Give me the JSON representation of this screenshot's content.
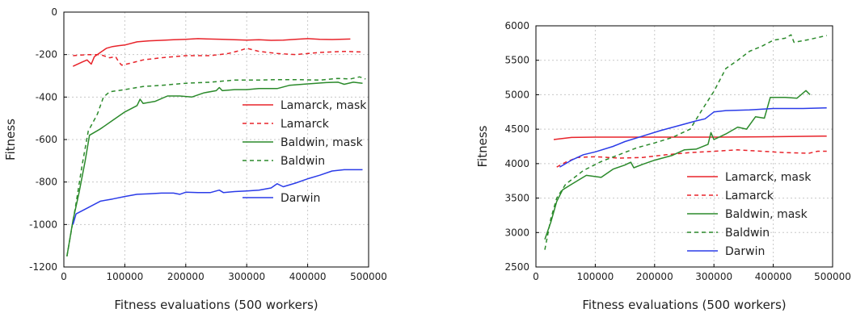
{
  "chart_data": [
    {
      "type": "line",
      "xlabel": "Fitness evaluations (500 workers)",
      "ylabel": "Fitness",
      "xlim": [
        0,
        500000
      ],
      "ylim": [
        -1200,
        0
      ],
      "xticks": [
        0,
        100000,
        200000,
        300000,
        400000,
        500000
      ],
      "xtick_labels": [
        "0",
        "100000",
        "200000",
        "300000",
        "400000",
        "500000"
      ],
      "yticks": [
        -1200,
        -1000,
        -800,
        -600,
        -400,
        -200,
        0
      ],
      "ytick_labels": [
        "-1200",
        "-1000",
        "-800",
        "-600",
        "-400",
        "-200",
        "0"
      ],
      "grid": true,
      "legend_position": "center-right",
      "series": [
        {
          "name": "Lamarck, mask",
          "color": "#e8232a",
          "dash": "solid",
          "points": [
            [
              15000,
              -255
            ],
            [
              30000,
              -235
            ],
            [
              38000,
              -225
            ],
            [
              45000,
              -245
            ],
            [
              50000,
              -210
            ],
            [
              60000,
              -190
            ],
            [
              70000,
              -170
            ],
            [
              80000,
              -162
            ],
            [
              90000,
              -158
            ],
            [
              100000,
              -155
            ],
            [
              120000,
              -140
            ],
            [
              140000,
              -135
            ],
            [
              160000,
              -133
            ],
            [
              180000,
              -130
            ],
            [
              200000,
              -128
            ],
            [
              220000,
              -125
            ],
            [
              240000,
              -127
            ],
            [
              260000,
              -128
            ],
            [
              280000,
              -130
            ],
            [
              300000,
              -132
            ],
            [
              320000,
              -130
            ],
            [
              340000,
              -133
            ],
            [
              360000,
              -132
            ],
            [
              380000,
              -128
            ],
            [
              400000,
              -125
            ],
            [
              420000,
              -128
            ],
            [
              440000,
              -129
            ],
            [
              470000,
              -127
            ]
          ]
        },
        {
          "name": "Lamarck",
          "color": "#e8232a",
          "dash": "dashed",
          "points": [
            [
              15000,
              -205
            ],
            [
              40000,
              -200
            ],
            [
              60000,
              -200
            ],
            [
              75000,
              -215
            ],
            [
              85000,
              -210
            ],
            [
              90000,
              -235
            ],
            [
              95000,
              -250
            ],
            [
              110000,
              -240
            ],
            [
              130000,
              -225
            ],
            [
              160000,
              -215
            ],
            [
              200000,
              -205
            ],
            [
              240000,
              -205
            ],
            [
              270000,
              -195
            ],
            [
              290000,
              -180
            ],
            [
              300000,
              -170
            ],
            [
              320000,
              -185
            ],
            [
              350000,
              -195
            ],
            [
              380000,
              -200
            ],
            [
              420000,
              -190
            ],
            [
              460000,
              -185
            ],
            [
              490000,
              -188
            ]
          ]
        },
        {
          "name": "Baldwin, mask",
          "color": "#2b8a2b",
          "dash": "solid",
          "points": [
            [
              5000,
              -1150
            ],
            [
              15000,
              -980
            ],
            [
              25000,
              -850
            ],
            [
              35000,
              -700
            ],
            [
              42000,
              -580
            ],
            [
              60000,
              -550
            ],
            [
              80000,
              -510
            ],
            [
              100000,
              -470
            ],
            [
              120000,
              -440
            ],
            [
              125000,
              -410
            ],
            [
              130000,
              -430
            ],
            [
              150000,
              -420
            ],
            [
              170000,
              -395
            ],
            [
              190000,
              -395
            ],
            [
              210000,
              -400
            ],
            [
              230000,
              -380
            ],
            [
              250000,
              -370
            ],
            [
              255000,
              -355
            ],
            [
              260000,
              -370
            ],
            [
              280000,
              -365
            ],
            [
              300000,
              -365
            ],
            [
              320000,
              -360
            ],
            [
              350000,
              -360
            ],
            [
              370000,
              -345
            ],
            [
              400000,
              -338
            ],
            [
              430000,
              -332
            ],
            [
              450000,
              -330
            ],
            [
              460000,
              -340
            ],
            [
              475000,
              -330
            ],
            [
              490000,
              -335
            ]
          ]
        },
        {
          "name": "Baldwin",
          "color": "#2b8a2b",
          "dash": "dashed",
          "points": [
            [
              5000,
              -1150
            ],
            [
              20000,
              -900
            ],
            [
              30000,
              -720
            ],
            [
              40000,
              -560
            ],
            [
              55000,
              -480
            ],
            [
              65000,
              -400
            ],
            [
              75000,
              -375
            ],
            [
              100000,
              -365
            ],
            [
              130000,
              -350
            ],
            [
              160000,
              -345
            ],
            [
              200000,
              -335
            ],
            [
              240000,
              -330
            ],
            [
              280000,
              -320
            ],
            [
              320000,
              -320
            ],
            [
              350000,
              -318
            ],
            [
              380000,
              -318
            ],
            [
              420000,
              -320
            ],
            [
              450000,
              -312
            ],
            [
              470000,
              -315
            ],
            [
              485000,
              -305
            ],
            [
              495000,
              -315
            ]
          ]
        },
        {
          "name": "Darwin",
          "color": "#2a3be8",
          "dash": "solid",
          "points": [
            [
              15000,
              -1000
            ],
            [
              20000,
              -950
            ],
            [
              40000,
              -920
            ],
            [
              60000,
              -890
            ],
            [
              80000,
              -880
            ],
            [
              100000,
              -868
            ],
            [
              120000,
              -858
            ],
            [
              140000,
              -855
            ],
            [
              160000,
              -852
            ],
            [
              180000,
              -852
            ],
            [
              190000,
              -858
            ],
            [
              200000,
              -848
            ],
            [
              220000,
              -850
            ],
            [
              240000,
              -850
            ],
            [
              255000,
              -838
            ],
            [
              262000,
              -850
            ],
            [
              280000,
              -845
            ],
            [
              300000,
              -842
            ],
            [
              320000,
              -838
            ],
            [
              340000,
              -828
            ],
            [
              350000,
              -808
            ],
            [
              360000,
              -822
            ],
            [
              380000,
              -805
            ],
            [
              400000,
              -785
            ],
            [
              420000,
              -768
            ],
            [
              440000,
              -748
            ],
            [
              460000,
              -742
            ],
            [
              490000,
              -742
            ]
          ]
        }
      ]
    },
    {
      "type": "line",
      "xlabel": "Fitness evaluations (500 workers)",
      "ylabel": "Fitness",
      "xlim": [
        0,
        500000
      ],
      "ylim": [
        2500,
        6000
      ],
      "xticks": [
        0,
        100000,
        200000,
        300000,
        400000,
        500000
      ],
      "xtick_labels": [
        "0",
        "100000",
        "200000",
        "300000",
        "400000",
        "500000"
      ],
      "yticks": [
        2500,
        3000,
        3500,
        4000,
        4500,
        5000,
        5500,
        6000
      ],
      "ytick_labels": [
        "2500",
        "3000",
        "3500",
        "4000",
        "4500",
        "5000",
        "5500",
        "6000"
      ],
      "grid": true,
      "legend_position": "lower-right",
      "series": [
        {
          "name": "Lamarck, mask",
          "color": "#e8232a",
          "dash": "solid",
          "points": [
            [
              30000,
              4350
            ],
            [
              60000,
              4380
            ],
            [
              100000,
              4385
            ],
            [
              200000,
              4385
            ],
            [
              300000,
              4385
            ],
            [
              400000,
              4390
            ],
            [
              490000,
              4400
            ]
          ]
        },
        {
          "name": "Lamarck",
          "color": "#e8232a",
          "dash": "dashed",
          "points": [
            [
              35000,
              3950
            ],
            [
              50000,
              4020
            ],
            [
              70000,
              4090
            ],
            [
              100000,
              4100
            ],
            [
              140000,
              4080
            ],
            [
              180000,
              4090
            ],
            [
              220000,
              4130
            ],
            [
              260000,
              4160
            ],
            [
              300000,
              4180
            ],
            [
              340000,
              4200
            ],
            [
              380000,
              4180
            ],
            [
              420000,
              4160
            ],
            [
              460000,
              4150
            ],
            [
              475000,
              4180
            ],
            [
              490000,
              4180
            ]
          ]
        },
        {
          "name": "Baldwin, mask",
          "color": "#2b8a2b",
          "dash": "solid",
          "points": [
            [
              15000,
              2900
            ],
            [
              25000,
              3150
            ],
            [
              35000,
              3450
            ],
            [
              45000,
              3620
            ],
            [
              60000,
              3700
            ],
            [
              85000,
              3830
            ],
            [
              110000,
              3800
            ],
            [
              130000,
              3920
            ],
            [
              150000,
              3980
            ],
            [
              160000,
              4020
            ],
            [
              165000,
              3940
            ],
            [
              180000,
              3990
            ],
            [
              200000,
              4050
            ],
            [
              230000,
              4120
            ],
            [
              250000,
              4200
            ],
            [
              270000,
              4210
            ],
            [
              290000,
              4280
            ],
            [
              295000,
              4450
            ],
            [
              300000,
              4350
            ],
            [
              320000,
              4430
            ],
            [
              340000,
              4530
            ],
            [
              355000,
              4500
            ],
            [
              370000,
              4680
            ],
            [
              385000,
              4660
            ],
            [
              395000,
              4960
            ],
            [
              420000,
              4960
            ],
            [
              440000,
              4950
            ],
            [
              455000,
              5060
            ],
            [
              462000,
              5000
            ]
          ]
        },
        {
          "name": "Baldwin",
          "color": "#2b8a2b",
          "dash": "dashed",
          "points": [
            [
              15000,
              2750
            ],
            [
              25000,
              3200
            ],
            [
              35000,
              3500
            ],
            [
              50000,
              3700
            ],
            [
              80000,
              3900
            ],
            [
              110000,
              4030
            ],
            [
              140000,
              4130
            ],
            [
              170000,
              4230
            ],
            [
              200000,
              4300
            ],
            [
              230000,
              4380
            ],
            [
              260000,
              4500
            ],
            [
              280000,
              4780
            ],
            [
              300000,
              5050
            ],
            [
              320000,
              5380
            ],
            [
              340000,
              5500
            ],
            [
              360000,
              5630
            ],
            [
              380000,
              5700
            ],
            [
              400000,
              5790
            ],
            [
              420000,
              5820
            ],
            [
              430000,
              5870
            ],
            [
              435000,
              5760
            ],
            [
              460000,
              5800
            ],
            [
              490000,
              5860
            ]
          ]
        },
        {
          "name": "Darwin",
          "color": "#2a3be8",
          "dash": "solid",
          "points": [
            [
              40000,
              3950
            ],
            [
              60000,
              4050
            ],
            [
              80000,
              4130
            ],
            [
              100000,
              4170
            ],
            [
              130000,
              4250
            ],
            [
              150000,
              4320
            ],
            [
              180000,
              4400
            ],
            [
              210000,
              4480
            ],
            [
              240000,
              4550
            ],
            [
              270000,
              4620
            ],
            [
              285000,
              4650
            ],
            [
              300000,
              4750
            ],
            [
              320000,
              4770
            ],
            [
              360000,
              4780
            ],
            [
              400000,
              4800
            ],
            [
              450000,
              4800
            ],
            [
              490000,
              4810
            ]
          ]
        }
      ]
    }
  ]
}
